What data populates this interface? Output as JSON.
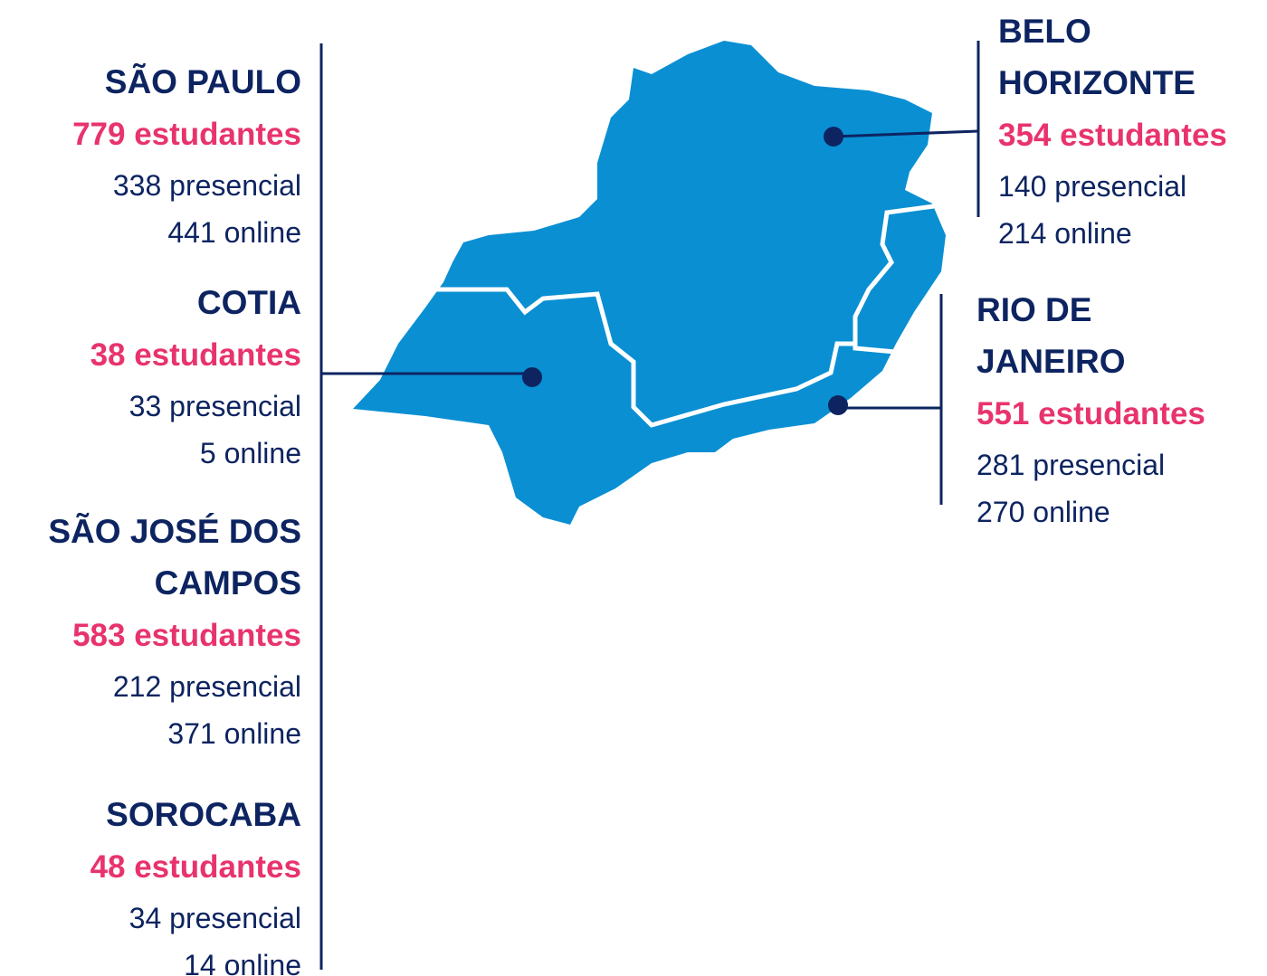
{
  "cities_left": [
    {
      "name": [
        "SÃO PAULO"
      ],
      "total": "779 estudantes",
      "presencial": "338 presencial",
      "online": "441 online"
    },
    {
      "name": [
        "COTIA"
      ],
      "total": "38 estudantes",
      "presencial": "33 presencial",
      "online": "5 online"
    },
    {
      "name": [
        "SÃO JOSÉ DOS",
        "CAMPOS"
      ],
      "total": "583 estudantes",
      "presencial": "212 presencial",
      "online": "371 online"
    },
    {
      "name": [
        "SOROCABA"
      ],
      "total": "48 estudantes",
      "presencial": "34 presencial",
      "online": "14 online"
    }
  ],
  "cities_right": [
    {
      "name": [
        "BELO",
        "HORIZONTE"
      ],
      "total": "354 estudantes",
      "presencial": "140 presencial",
      "online": "214 online"
    },
    {
      "name": [
        "RIO DE",
        "JANEIRO"
      ],
      "total": "551 estudantes",
      "presencial": "281 presencial",
      "online": "270 online"
    }
  ]
}
